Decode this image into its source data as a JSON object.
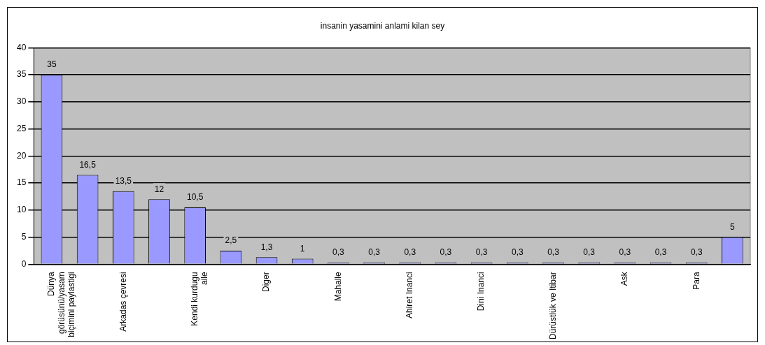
{
  "chart_data": {
    "type": "bar",
    "title": "insanin yasamini anlami kilan sey",
    "categories": [
      [
        "Dünya",
        "görüsünü/yasam",
        "biçimini paylastigi"
      ],
      null,
      "Arkadas çevresi",
      null,
      [
        "Kendi kurdugu",
        "aile"
      ],
      null,
      "Diger",
      null,
      "Mahalle",
      null,
      "Ahiret Inanci",
      null,
      "Dini Inanci",
      null,
      "Dürüstlük ve Itibar",
      null,
      "Ask",
      null,
      "Para",
      null
    ],
    "values": [
      35,
      16.5,
      13.5,
      12,
      10.5,
      2.5,
      1.3,
      1,
      0.3,
      0.3,
      0.3,
      0.3,
      0.3,
      0.3,
      0.3,
      0.3,
      0.3,
      0.3,
      0.3,
      5
    ],
    "value_labels": [
      "35",
      "16,5",
      "13,5",
      "12",
      "10,5",
      "2,5",
      "1,3",
      "1",
      "0,3",
      "0,3",
      "0,3",
      "0,3",
      "0,3",
      "0,3",
      "0,3",
      "0,3",
      "0,3",
      "0,3",
      "0,3",
      "5"
    ],
    "color": "#9999ff",
    "ylim": [
      0,
      40
    ],
    "yticks": [
      0,
      5,
      10,
      15,
      20,
      25,
      30,
      35,
      40
    ],
    "grid": "y",
    "legend": false
  }
}
